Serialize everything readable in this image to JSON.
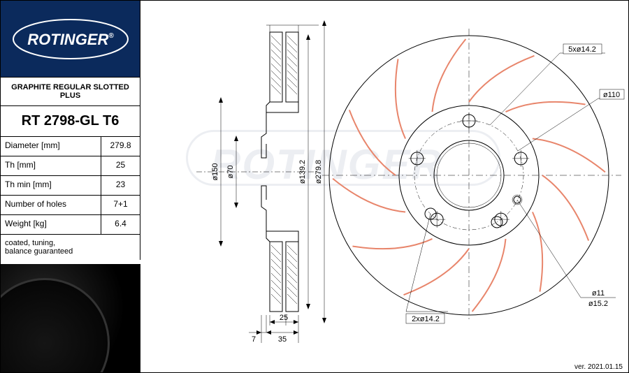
{
  "brand": "ROTINGER",
  "brand_reg": "®",
  "product_line": "GRAPHITE REGULAR SLOTTED PLUS",
  "part_number": "RT 2798-GL T6",
  "specs": [
    {
      "label": "Diameter [mm]",
      "value": "279.8"
    },
    {
      "label": "Th [mm]",
      "value": "25"
    },
    {
      "label": "Th min [mm]",
      "value": "23"
    },
    {
      "label": "Number of holes",
      "value": "7+1"
    },
    {
      "label": "Weight [kg]",
      "value": "6.4"
    }
  ],
  "notes_line1": "coated, tuning,",
  "notes_line2": "balance guaranteed",
  "version": "ver. 2021.01.15",
  "side_dims": {
    "d150": "ø150",
    "d70": "ø70",
    "d139_2": "ø139.2",
    "d279_8": "ø279.8",
    "w25": "25",
    "w35": "35",
    "w7": "7"
  },
  "front_dims": {
    "holes5": "5xø14.2",
    "d110": "ø110",
    "holes2": "2xø14.2",
    "d11": "ø11",
    "d15_2": "ø15.2"
  },
  "colors": {
    "brand_bg": "#0b2a5c",
    "slot": "#e8856b",
    "line": "#000000",
    "bg": "#ffffff"
  },
  "disc": {
    "outer_r": 200,
    "inner_r": 100,
    "hub_r": 50,
    "bolt_circle_r": 78,
    "num_slots": 12,
    "num_bolts_outer": 5,
    "num_bolts_inner": 2
  }
}
